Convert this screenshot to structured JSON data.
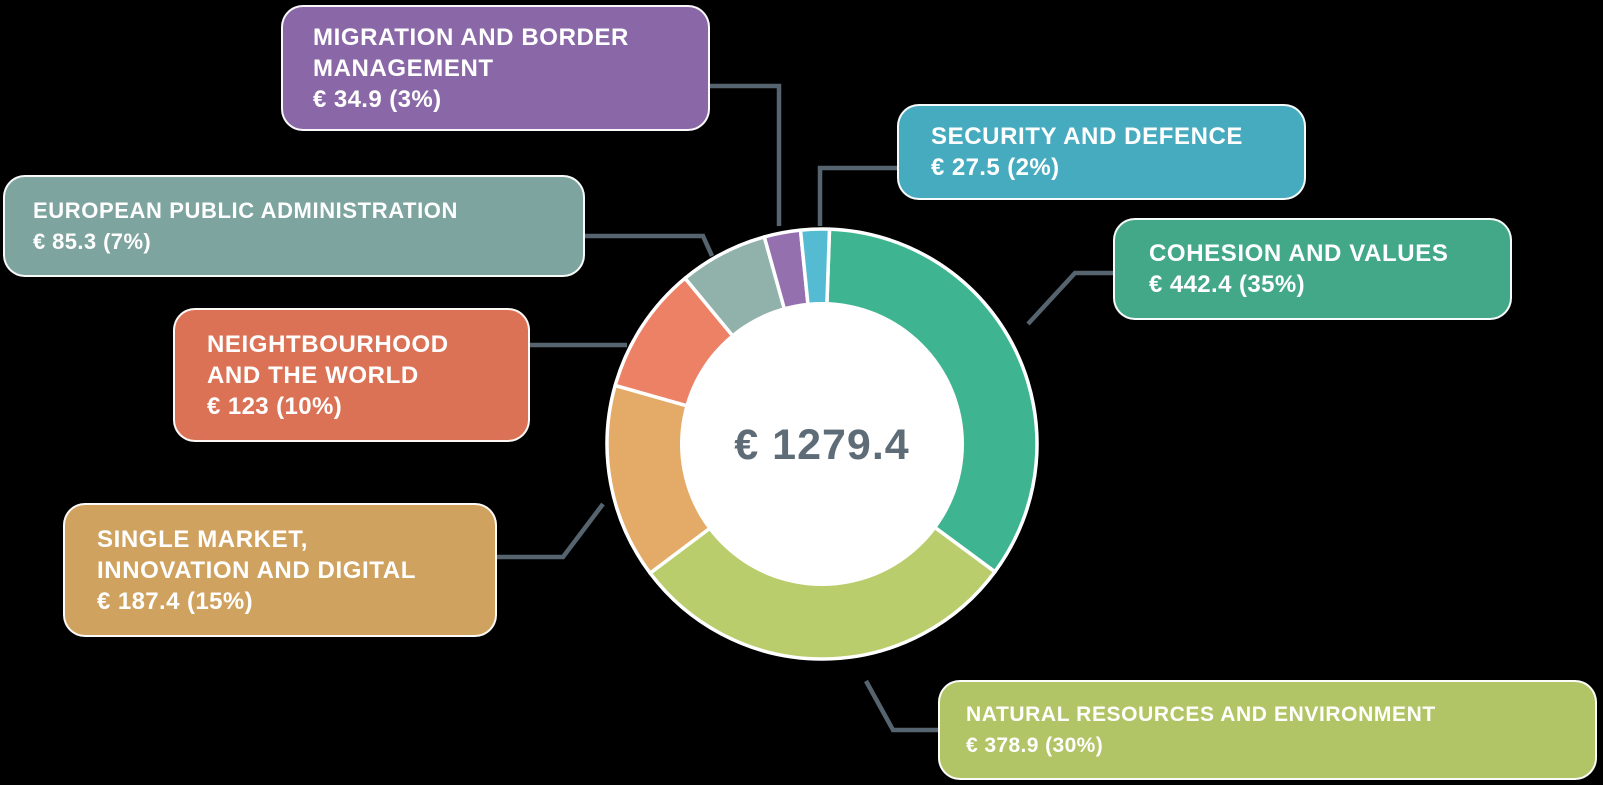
{
  "background_color": "#000000",
  "connector_color": "#56646F",
  "chart_data": {
    "type": "pie",
    "subtype": "donut",
    "title": "",
    "center_label": "€ 1279.4",
    "center_label_color": "#5D6C77",
    "total": 1279.4,
    "start_angle_deg": 2,
    "direction": "clockwise",
    "legend_position": "callout-boxes",
    "series": [
      {
        "id": "cohesion-and-values",
        "name": "COHESION AND VALUES",
        "value": 442.4,
        "pct": 35,
        "lines": [
          "COHESION AND VALUES"
        ],
        "value_label": "€ 442.4 (35%)",
        "slice_color": "#3EB590",
        "box_color": "#43A887"
      },
      {
        "id": "natural-resources-and-environment",
        "name": "NATURAL RESOURCES AND ENVIRONMENT",
        "value": 378.9,
        "pct": 30,
        "lines": [
          "NATURAL RESOURCES AND ENVIRONMENT"
        ],
        "value_label": "€ 378.9 (30%)",
        "slice_color": "#B9CD6C",
        "box_color": "#B2C566"
      },
      {
        "id": "single-market-innovation-and-digital",
        "name": "SINGLE MARKET, INNOVATION AND DIGITAL",
        "value": 187.4,
        "pct": 15,
        "lines": [
          "SINGLE MARKET,",
          "INNOVATION AND DIGITAL"
        ],
        "value_label": "€ 187.4 (15%)",
        "slice_color": "#E4AA67",
        "box_color": "#D0A260"
      },
      {
        "id": "neighbourhood-and-the-world",
        "name": "NEIGHTBOURHOOD AND THE WORLD",
        "value": 123,
        "pct": 10,
        "lines": [
          "NEIGHTBOURHOOD",
          "AND THE WORLD"
        ],
        "value_label": "€ 123 (10%)",
        "slice_color": "#EC8166",
        "box_color": "#DB7255"
      },
      {
        "id": "european-public-administration",
        "name": "EUROPEAN PUBLIC ADMINISTRATION",
        "value": 85.3,
        "pct": 7,
        "lines": [
          "EUROPEAN PUBLIC ADMINISTRATION"
        ],
        "value_label": "€ 85.3 (7%)",
        "slice_color": "#91B1AB",
        "box_color": "#7DA49E"
      },
      {
        "id": "migration-and-border-management",
        "name": "MIGRATION AND BORDER MANAGEMENT",
        "value": 34.9,
        "pct": 3,
        "lines": [
          "MIGRATION AND BORDER",
          "MANAGEMENT"
        ],
        "value_label": "€ 34.9 (3%)",
        "slice_color": "#9570AF",
        "box_color": "#8A68A7"
      },
      {
        "id": "security-and-defence",
        "name": "SECURITY AND DEFENCE",
        "value": 27.5,
        "pct": 2,
        "lines": [
          "SECURITY AND DEFENCE"
        ],
        "value_label": "€ 27.5 (2%)",
        "slice_color": "#54BBD2",
        "box_color": "#47ABBF"
      }
    ]
  }
}
